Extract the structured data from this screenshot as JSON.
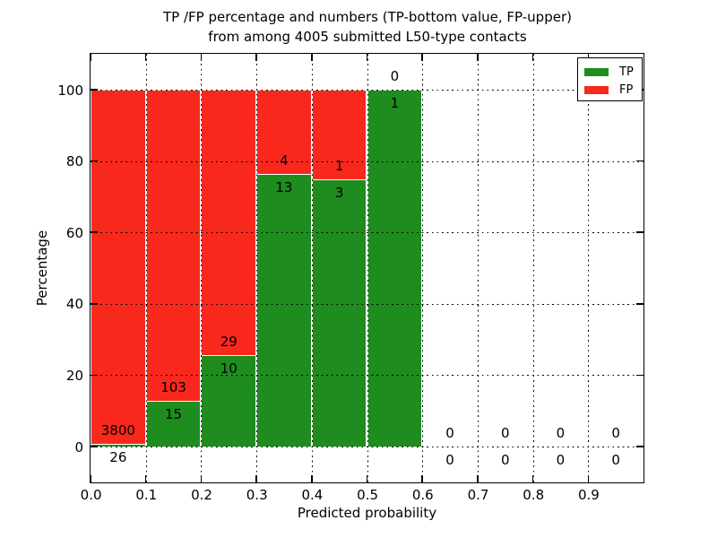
{
  "chart_data": {
    "type": "bar",
    "stacked": true,
    "normalization": "percent",
    "title_line1": "TP /FP percentage and numbers (TP-bottom value, FP-upper)",
    "title_line2": "from among 4005 submitted L50-type contacts",
    "xlabel": "Predicted probability",
    "ylabel": "Percentage",
    "total_submitted": 4005,
    "xlim": [
      0.0,
      1.0
    ],
    "ylim": [
      -10.5,
      110.0
    ],
    "bin_width": 0.1,
    "bin_starts": [
      0.0,
      0.1,
      0.2,
      0.3,
      0.4,
      0.5,
      0.6,
      0.7,
      0.8,
      0.9
    ],
    "xtick_labels": [
      "0.0",
      "0.1",
      "0.2",
      "0.3",
      "0.4",
      "0.5",
      "0.6",
      "0.7",
      "0.8",
      "0.9"
    ],
    "ytick_values": [
      0,
      20,
      40,
      60,
      80,
      100
    ],
    "grid": "dotted",
    "series": [
      {
        "name": "TP",
        "color": "#1e8c1e",
        "values": [
          26,
          15,
          10,
          13,
          3,
          1,
          0,
          0,
          0,
          0
        ]
      },
      {
        "name": "FP",
        "color": "#f8281c",
        "values": [
          3800,
          103,
          29,
          4,
          1,
          0,
          0,
          0,
          0,
          0
        ]
      }
    ],
    "legend": {
      "position": "upper right",
      "entries": [
        {
          "label": "TP",
          "color": "#1e8c1e"
        },
        {
          "label": "FP",
          "color": "#f8281c"
        }
      ]
    }
  }
}
